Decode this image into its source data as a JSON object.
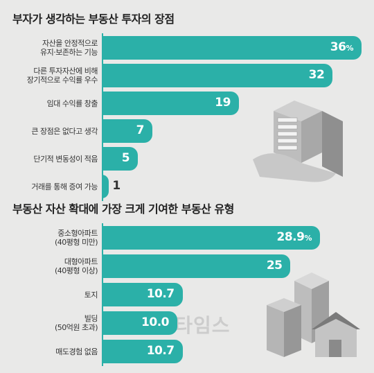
{
  "chart_data": [
    {
      "type": "bar",
      "title": "부자가 생각하는 부동산 투자의 장점",
      "categories": [
        "자산을 안정적으로\n유지·보존하는 기능",
        "다른 투자자산에 비해\n장기적으로 수익률 우수",
        "임대 수익률 창출",
        "큰 장점은 없다고 생각",
        "단기적 변동성이 적음",
        "거래를 통해 증여 가능"
      ],
      "values": [
        36,
        32,
        19,
        7,
        5,
        1
      ],
      "labels": [
        "36",
        "32",
        "19",
        "7",
        "5",
        "1"
      ],
      "unit_first": "%",
      "xlim": [
        0,
        36
      ]
    },
    {
      "type": "bar",
      "title": "부동산 자산 확대에 가장 크게 기여한 부동산 유형",
      "categories": [
        "중소형아파트\n(40평형 미만)",
        "대형아파트\n(40평형 이상)",
        "토지",
        "빌딩\n(50억원 초과)",
        "매도경험 없음"
      ],
      "values": [
        28.9,
        25,
        10.7,
        10.0,
        10.7
      ],
      "labels": [
        "28.9",
        "25",
        "10.7",
        "10.0",
        "10.7"
      ],
      "unit_first": "%",
      "xlim": [
        0,
        28.9
      ]
    }
  ],
  "watermark": "디지털타임스",
  "colors": {
    "bar": "#2bb0a8",
    "background": "#e9e9e8"
  }
}
